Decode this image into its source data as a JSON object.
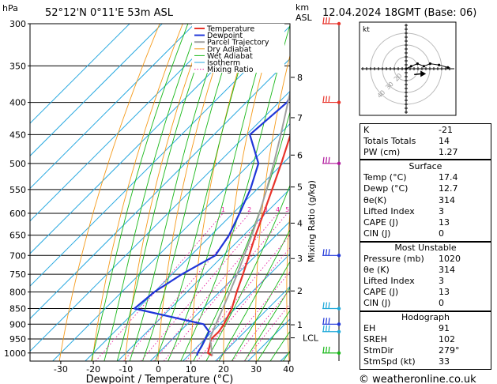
{
  "header": {
    "hpa": "hPa",
    "location": "52°12'N  0°11'E  53m  ASL",
    "km": "km",
    "asl": "ASL",
    "datetime": "12.04.2024  18GMT  (Base: 06)"
  },
  "legend": [
    "Temperature",
    "Dewpoint",
    "Parcel Trajectory",
    "Dry Adiabat",
    "Wet Adiabat",
    "Isotherm",
    "Mixing Ratio"
  ],
  "colors": {
    "temperature": "#e8332a",
    "dewpoint": "#1f36d9",
    "parcel": "#a0a0a0",
    "dry_adiabat": "#f59a1a",
    "wet_adiabat": "#19b819",
    "isotherm": "#29a9e0",
    "mixing_ratio": "#e61ea0"
  },
  "chart_data": {
    "type": "line",
    "title": "",
    "xlabel": "Dewpoint / Temperature (°C)",
    "ylabel_right": "Mixing Ratio (g/kg)",
    "x_ticks": [
      -30,
      -20,
      -10,
      0,
      10,
      20,
      30,
      40
    ],
    "pressure_levels": [
      300,
      350,
      400,
      450,
      500,
      550,
      600,
      650,
      700,
      750,
      800,
      850,
      900,
      950,
      1000
    ],
    "km_ticks": [
      {
        "label": "8",
        "p": 365
      },
      {
        "label": "7",
        "p": 423
      },
      {
        "label": "6",
        "p": 485
      },
      {
        "label": "5",
        "p": 545
      },
      {
        "label": "4",
        "p": 622
      },
      {
        "label": "3",
        "p": 708
      },
      {
        "label": "2",
        "p": 797
      },
      {
        "label": "1",
        "p": 902
      }
    ],
    "lcl": {
      "label": "LCL",
      "p": 946
    },
    "mixing_ratio_labels": [
      "1",
      "2",
      "3",
      "4",
      "5",
      "8",
      "10",
      "15",
      "20",
      "25"
    ],
    "series": [
      {
        "name": "Temperature",
        "points": [
          {
            "p": 1010,
            "t": 17.4
          },
          {
            "p": 1000,
            "t": 15.2
          },
          {
            "p": 975,
            "t": 13.6
          },
          {
            "p": 950,
            "t": 11.9
          },
          {
            "p": 925,
            "t": 12.0
          },
          {
            "p": 900,
            "t": 11.3
          },
          {
            "p": 850,
            "t": 8.9
          },
          {
            "p": 800,
            "t": 5.3
          },
          {
            "p": 750,
            "t": 1.8
          },
          {
            "p": 700,
            "t": -2.1
          },
          {
            "p": 650,
            "t": -6.4
          },
          {
            "p": 600,
            "t": -10.6
          },
          {
            "p": 550,
            "t": -15.3
          },
          {
            "p": 500,
            "t": -20.5
          },
          {
            "p": 450,
            "t": -26.5
          },
          {
            "p": 400,
            "t": -33.5
          },
          {
            "p": 350,
            "t": -41.8
          },
          {
            "p": 300,
            "t": -51.0
          }
        ]
      },
      {
        "name": "Dewpoint",
        "points": [
          {
            "p": 1010,
            "t": 12.7
          },
          {
            "p": 1000,
            "t": 12.0
          },
          {
            "p": 975,
            "t": 11.2
          },
          {
            "p": 950,
            "t": 10.1
          },
          {
            "p": 925,
            "t": 9.0
          },
          {
            "p": 900,
            "t": 5.0
          },
          {
            "p": 850,
            "t": -21.0
          },
          {
            "p": 800,
            "t": -20.0
          },
          {
            "p": 750,
            "t": -17.0
          },
          {
            "p": 700,
            "t": -12.5
          },
          {
            "p": 650,
            "t": -14.5
          },
          {
            "p": 600,
            "t": -18.0
          },
          {
            "p": 550,
            "t": -22.0
          },
          {
            "p": 500,
            "t": -27.5
          },
          {
            "p": 450,
            "t": -39.0
          },
          {
            "p": 400,
            "t": -37.5
          },
          {
            "p": 350,
            "t": -42.5
          },
          {
            "p": 300,
            "t": -52.0
          }
        ]
      },
      {
        "name": "Parcel Trajectory",
        "points": [
          {
            "p": 1010,
            "t": 17.4
          },
          {
            "p": 946,
            "t": 11.2
          },
          {
            "p": 900,
            "t": 8.8
          },
          {
            "p": 850,
            "t": 6.1
          },
          {
            "p": 800,
            "t": 3.2
          },
          {
            "p": 750,
            "t": 0.0
          },
          {
            "p": 700,
            "t": -3.6
          },
          {
            "p": 650,
            "t": -7.5
          },
          {
            "p": 600,
            "t": -11.9
          },
          {
            "p": 550,
            "t": -17.0
          },
          {
            "p": 500,
            "t": -22.8
          },
          {
            "p": 450,
            "t": -29.5
          },
          {
            "p": 400,
            "t": -37.2
          },
          {
            "p": 350,
            "t": -46.0
          },
          {
            "p": 300,
            "t": -55.5
          }
        ]
      }
    ],
    "wind_barbs": [
      {
        "p": 300,
        "color": "#e8332a"
      },
      {
        "p": 400,
        "color": "#e8332a"
      },
      {
        "p": 500,
        "color": "#b0179c"
      },
      {
        "p": 700,
        "color": "#1f36d9"
      },
      {
        "p": 850,
        "color": "#1fa9d9"
      },
      {
        "p": 900,
        "color": "#1f36d9"
      },
      {
        "p": 925,
        "color": "#1fa9d9"
      },
      {
        "p": 1000,
        "color": "#19b819"
      }
    ],
    "hodograph": {
      "label": "kt",
      "ring_labels": [
        "20",
        "30",
        "40"
      ],
      "trace": [
        [
          0,
          0
        ],
        [
          4,
          2
        ],
        [
          9,
          4
        ],
        [
          14,
          2
        ],
        [
          19,
          4
        ],
        [
          26,
          3
        ],
        [
          33,
          1
        ]
      ],
      "storm_motion": [
        12,
        -4
      ]
    }
  },
  "indices": {
    "rows": [
      {
        "label": "K",
        "value": "-21"
      },
      {
        "label": "Totals Totals",
        "value": "14"
      },
      {
        "label": "PW (cm)",
        "value": "1.27"
      }
    ]
  },
  "surface": {
    "title": "Surface",
    "rows": [
      {
        "label": "Temp (°C)",
        "value": "17.4"
      },
      {
        "label": "Dewp (°C)",
        "value": "12.7"
      },
      {
        "label": "θe(K)",
        "value": "314"
      },
      {
        "label": "Lifted Index",
        "value": "3"
      },
      {
        "label": "CAPE (J)",
        "value": "13"
      },
      {
        "label": "CIN (J)",
        "value": "0"
      }
    ]
  },
  "most_unstable": {
    "title": "Most Unstable",
    "rows": [
      {
        "label": "Pressure (mb)",
        "value": "1020"
      },
      {
        "label": "θe (K)",
        "value": "314"
      },
      {
        "label": "Lifted Index",
        "value": "3"
      },
      {
        "label": "CAPE (J)",
        "value": "13"
      },
      {
        "label": "CIN (J)",
        "value": "0"
      }
    ]
  },
  "hodograph_table": {
    "title": "Hodograph",
    "rows": [
      {
        "label": "EH",
        "value": "91"
      },
      {
        "label": "SREH",
        "value": "102"
      },
      {
        "label": "StmDir",
        "value": "279°"
      },
      {
        "label": "StmSpd (kt)",
        "value": "33"
      }
    ]
  },
  "footer": {
    "credit": "© weatheronline.co.uk"
  }
}
